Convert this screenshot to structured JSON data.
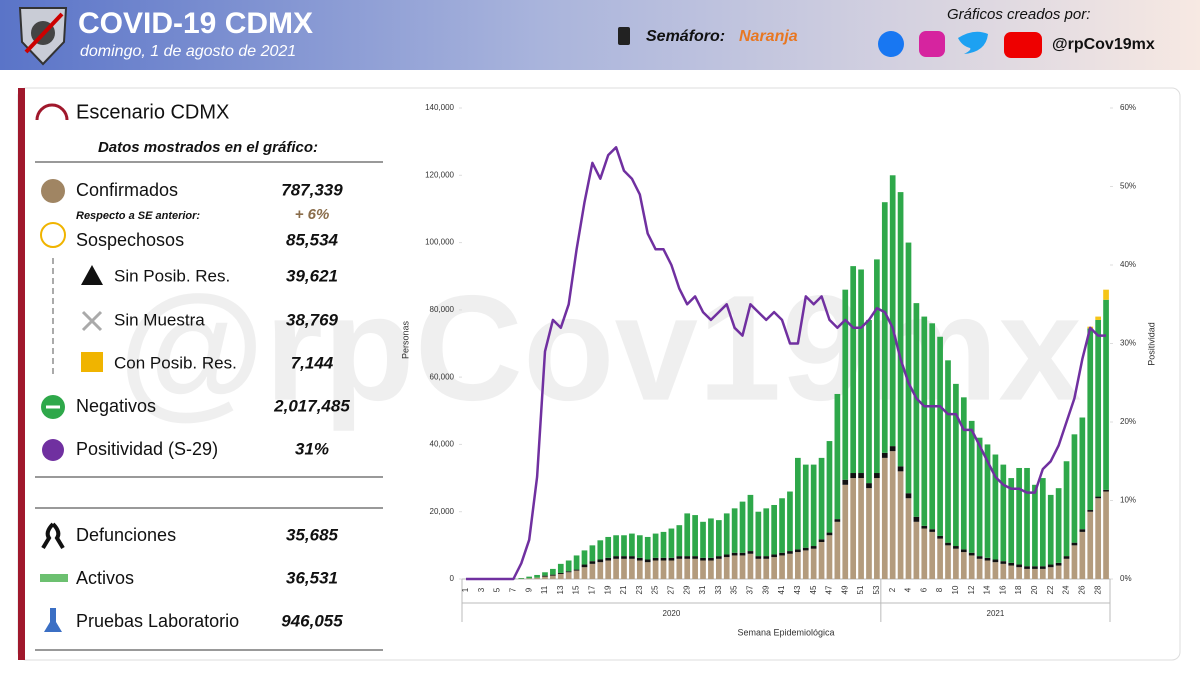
{
  "header": {
    "title": "COVID-19 CDMX",
    "date": "domingo, 1 de agosto de 2021",
    "semaforo_label": "Semáforo:",
    "semaforo_value": "Naranja",
    "credits": "Gráficos creados por:",
    "handle": "@rpCov19mx"
  },
  "watermark": "@rpCov19mx",
  "panel": {
    "title": "Escenario CDMX",
    "subtitle": "Datos mostrados en el gráfico:",
    "rows": [
      {
        "label": "Confirmados",
        "value": "787,339"
      },
      {
        "label": "Sospechosos",
        "value": "85,534"
      },
      {
        "label": "Sin Posib. Res.",
        "value": "39,621"
      },
      {
        "label": "Sin Muestra",
        "value": "38,769"
      },
      {
        "label": "Con Posib. Res.",
        "value": "7,144"
      },
      {
        "label": "Negativos",
        "value": "2,017,485"
      },
      {
        "label": "Positividad (S-29)",
        "value": "31%"
      },
      {
        "label": "Defunciones",
        "value": "35,685"
      },
      {
        "label": "Activos",
        "value": "36,531"
      },
      {
        "label": "Pruebas Laboratorio",
        "value": "946,055"
      }
    ],
    "note": {
      "label": "Respecto a SE anterior:",
      "value": "+ 6%"
    }
  },
  "chart_data": {
    "type": "bar",
    "stacked": true,
    "xlabel": "Semana Epidemiológica",
    "ylabel": "Personas",
    "y2label": "Positividad",
    "year_labels": [
      "2020",
      "2021"
    ],
    "categories": [
      1,
      null,
      3,
      null,
      5,
      null,
      7,
      null,
      9,
      null,
      11,
      null,
      13,
      null,
      15,
      null,
      17,
      null,
      19,
      null,
      21,
      null,
      23,
      null,
      25,
      null,
      27,
      null,
      29,
      null,
      31,
      null,
      33,
      null,
      35,
      null,
      37,
      null,
      39,
      null,
      41,
      null,
      43,
      null,
      45,
      null,
      47,
      null,
      49,
      null,
      51,
      null,
      53,
      null,
      2,
      null,
      4,
      null,
      6,
      null,
      8,
      null,
      10,
      null,
      12,
      null,
      14,
      null,
      16,
      null,
      18,
      null,
      20,
      null,
      22,
      null,
      24,
      null,
      26,
      null,
      28,
      null
    ],
    "ylim": [
      0,
      140000
    ],
    "yticks": [
      0,
      {
        "value": 20000,
        "label": "20,000"
      },
      {
        "value": 40000,
        "label": "40,000"
      },
      {
        "value": 60000,
        "label": "60,000"
      },
      {
        "value": 80000,
        "label": "80,000"
      },
      {
        "value": 100000,
        "label": "100,000"
      },
      {
        "value": 120000,
        "label": "120,000"
      },
      {
        "value": 140000,
        "label": "140,000"
      }
    ],
    "y2lim": [
      0,
      60
    ],
    "y2ticks": [
      {
        "value": 0,
        "label": "0%"
      },
      {
        "value": 10,
        "label": "10%"
      },
      {
        "value": 20,
        "label": "20%"
      },
      {
        "value": 30,
        "label": "30%"
      },
      {
        "value": 40,
        "label": "40%"
      },
      {
        "value": 50,
        "label": "50%"
      },
      {
        "value": 60,
        "label": "60%"
      }
    ],
    "series": [
      {
        "color": "#b39b7d",
        "values": [
          0,
          0,
          0,
          0,
          0,
          0,
          0,
          100,
          200,
          400,
          700,
          1000,
          1500,
          2000,
          2500,
          3500,
          4500,
          5000,
          5500,
          6000,
          6000,
          6000,
          5500,
          5000,
          5500,
          5500,
          5500,
          6000,
          6000,
          6000,
          5500,
          5500,
          6000,
          6500,
          7000,
          7000,
          7500,
          6000,
          6000,
          6500,
          7000,
          7500,
          8000,
          8500,
          9000,
          11000,
          13000,
          17000,
          28000,
          30000,
          30000,
          27000,
          30000,
          36000,
          38000,
          32000,
          24000,
          17000,
          15000,
          14000,
          12000,
          10000,
          9000,
          8000,
          7000,
          6000,
          5500,
          5000,
          4500,
          4000,
          3500,
          3000,
          3000,
          3000,
          3500,
          4000,
          6000,
          10000,
          14000,
          20000,
          24000,
          26000
        ]
      },
      {
        "color": "#111111",
        "values": [
          0,
          0,
          0,
          0,
          0,
          0,
          0,
          0,
          0,
          0,
          300,
          300,
          300,
          300,
          300,
          800,
          800,
          800,
          800,
          800,
          800,
          800,
          800,
          800,
          800,
          800,
          800,
          800,
          800,
          800,
          800,
          800,
          800,
          800,
          800,
          800,
          800,
          800,
          800,
          800,
          800,
          800,
          800,
          800,
          800,
          800,
          800,
          800,
          1500,
          1500,
          1500,
          1500,
          1500,
          1500,
          1500,
          1500,
          1500,
          1500,
          800,
          800,
          800,
          800,
          800,
          800,
          800,
          800,
          800,
          800,
          800,
          800,
          800,
          800,
          800,
          800,
          800,
          800,
          800,
          800,
          800,
          500,
          500,
          500
        ]
      },
      {
        "color": "#2ea84a",
        "values": [
          0,
          0,
          0,
          0,
          0,
          0,
          100,
          200,
          500,
          800,
          1000,
          1700,
          2700,
          3200,
          4200,
          4200,
          4700,
          5700,
          6200,
          6200,
          6200,
          6700,
          6700,
          6700,
          7200,
          7700,
          8700,
          9200,
          12700,
          12200,
          10700,
          11700,
          10700,
          12200,
          13200,
          15200,
          16700,
          13200,
          14200,
          14700,
          16200,
          17700,
          27200,
          24700,
          24200,
          24200,
          27200,
          37200,
          56500,
          61500,
          60500,
          48500,
          63500,
          74500,
          80500,
          81500,
          74500,
          63500,
          62200,
          61200,
          59200,
          54200,
          48200,
          45200,
          39200,
          35200,
          33700,
          31200,
          28700,
          25200,
          28700,
          29200,
          24200,
          26200,
          20700,
          22200,
          28200,
          32200,
          33200,
          54000,
          52500,
          56500
        ]
      },
      {
        "color": "#f5c518",
        "values": [
          0,
          0,
          0,
          0,
          0,
          0,
          0,
          0,
          0,
          0,
          0,
          0,
          0,
          0,
          0,
          0,
          0,
          0,
          0,
          0,
          0,
          0,
          0,
          0,
          0,
          0,
          0,
          0,
          0,
          0,
          0,
          0,
          0,
          0,
          0,
          0,
          0,
          0,
          0,
          0,
          0,
          0,
          0,
          0,
          0,
          0,
          0,
          0,
          0,
          0,
          0,
          0,
          0,
          0,
          0,
          0,
          0,
          0,
          0,
          0,
          0,
          0,
          0,
          0,
          0,
          0,
          0,
          0,
          0,
          0,
          0,
          0,
          0,
          0,
          0,
          0,
          0,
          0,
          0,
          500,
          1000,
          3000
        ]
      },
      {
        "type": "line",
        "axis": "y2",
        "color": "#7030a0",
        "values": [
          0,
          0,
          0,
          0,
          0,
          0,
          0,
          2,
          5,
          13,
          29,
          33,
          32,
          35,
          42,
          48,
          53,
          51,
          54,
          55,
          52,
          51,
          49,
          44,
          42,
          42,
          40,
          37,
          35,
          36,
          34,
          33,
          34,
          35,
          32,
          31,
          35,
          34,
          33,
          34,
          33,
          30,
          30,
          36,
          35,
          36,
          33,
          32,
          33,
          32,
          32,
          33,
          34.5,
          34,
          32,
          28,
          25,
          23,
          22,
          22,
          22,
          21,
          21,
          19,
          19,
          17,
          15,
          13,
          12,
          11.5,
          11.5,
          11,
          11,
          14,
          15,
          17,
          20,
          23,
          28,
          32,
          31,
          31
        ]
      }
    ]
  }
}
